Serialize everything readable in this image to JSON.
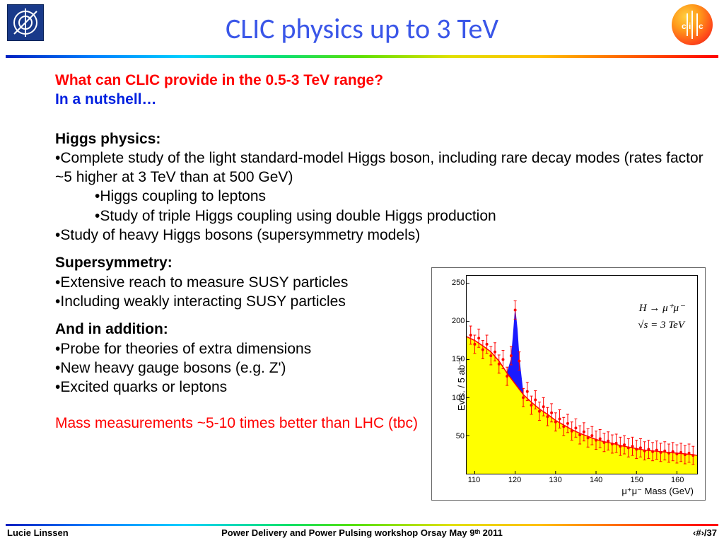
{
  "title": "CLIC physics up to 3 TeV",
  "question": "What can CLIC provide in the 0.5-3 TeV range?",
  "nutshell": "In a nutshell…",
  "higgs": {
    "heading": "Higgs physics:",
    "b1": "Complete study of the light standard-model Higgs boson, including rare decay modes (rates factor ~5 higher at 3 TeV than at 500 GeV)",
    "s1": "Higgs coupling to leptons",
    "s2": "Study of triple Higgs coupling using double Higgs production",
    "b2": "Study of heavy Higgs bosons (supersymmetry models)"
  },
  "susy": {
    "heading": "Supersymmetry:",
    "b1": "Extensive reach to measure SUSY particles",
    "b2": "Including weakly interacting SUSY particles"
  },
  "addl": {
    "heading": "And in addition:",
    "b1": "Probe for theories of extra dimensions",
    "b2": "New heavy gauge bosons (e.g. Z')",
    "b3": "Excited quarks or leptons"
  },
  "mass_note": "Mass measurements ~5-10 times better than LHC (tbc)",
  "chart": {
    "ylabel": "Evts. / 5 ab⁻¹",
    "xlabel": "μ⁺μ⁻ Mass (GeV)",
    "anno1": "H → μ⁺μ⁻",
    "anno2": "√s = 3 TeV",
    "xlim": [
      108,
      165
    ],
    "ylim": [
      0,
      260
    ],
    "xticks": [
      110,
      120,
      130,
      140,
      150,
      160
    ],
    "yticks": [
      50,
      100,
      150,
      200,
      250
    ],
    "bg_fill": "#ffff00",
    "line_color": "#ff0000",
    "peak_color": "#1a1aff",
    "background_curve": [
      [
        108,
        180
      ],
      [
        110,
        175
      ],
      [
        112,
        168
      ],
      [
        114,
        160
      ],
      [
        116,
        148
      ],
      [
        118,
        132
      ],
      [
        120,
        118
      ],
      [
        122,
        104
      ],
      [
        124,
        94
      ],
      [
        126,
        85
      ],
      [
        128,
        78
      ],
      [
        130,
        70
      ],
      [
        132,
        64
      ],
      [
        134,
        58
      ],
      [
        136,
        53
      ],
      [
        138,
        49
      ],
      [
        140,
        45
      ],
      [
        142,
        42
      ],
      [
        144,
        40
      ],
      [
        146,
        37
      ],
      [
        148,
        35
      ],
      [
        150,
        33
      ],
      [
        152,
        31
      ],
      [
        154,
        30
      ],
      [
        156,
        29
      ],
      [
        158,
        28
      ],
      [
        160,
        27
      ],
      [
        162,
        26
      ],
      [
        164,
        25
      ],
      [
        165,
        24
      ]
    ],
    "peak_curve": [
      [
        118,
        132
      ],
      [
        119,
        150
      ],
      [
        119.5,
        180
      ],
      [
        120,
        215
      ],
      [
        120.5,
        190
      ],
      [
        121,
        150
      ],
      [
        122,
        104
      ]
    ],
    "data_points": [
      [
        109,
        182
      ],
      [
        110,
        170
      ],
      [
        111,
        178
      ],
      [
        112,
        163
      ],
      [
        113,
        170
      ],
      [
        114,
        155
      ],
      [
        115,
        160
      ],
      [
        116,
        144
      ],
      [
        117,
        150
      ],
      [
        118,
        128
      ],
      [
        119,
        155
      ],
      [
        120,
        215
      ],
      [
        121,
        148
      ],
      [
        122,
        100
      ],
      [
        123,
        108
      ],
      [
        124,
        90
      ],
      [
        125,
        97
      ],
      [
        126,
        82
      ],
      [
        127,
        88
      ],
      [
        128,
        75
      ],
      [
        129,
        80
      ],
      [
        130,
        68
      ],
      [
        131,
        72
      ],
      [
        132,
        62
      ],
      [
        133,
        66
      ],
      [
        134,
        56
      ],
      [
        135,
        60
      ],
      [
        136,
        51
      ],
      [
        137,
        55
      ],
      [
        138,
        47
      ],
      [
        139,
        50
      ],
      [
        140,
        44
      ],
      [
        141,
        46
      ],
      [
        142,
        41
      ],
      [
        143,
        43
      ],
      [
        144,
        39
      ],
      [
        145,
        40
      ],
      [
        146,
        36
      ],
      [
        147,
        38
      ],
      [
        148,
        34
      ],
      [
        149,
        36
      ],
      [
        150,
        32
      ],
      [
        151,
        34
      ],
      [
        152,
        30
      ],
      [
        153,
        32
      ],
      [
        154,
        29
      ],
      [
        155,
        31
      ],
      [
        156,
        28
      ],
      [
        157,
        30
      ],
      [
        158,
        27
      ],
      [
        159,
        29
      ],
      [
        160,
        26
      ],
      [
        161,
        28
      ],
      [
        162,
        25
      ],
      [
        163,
        27
      ],
      [
        164,
        24
      ]
    ],
    "error_bar": 12
  },
  "footer": {
    "author": "Lucie Linssen",
    "event": "Power Delivery and Power Pulsing workshop Orsay May 9ᵗʰ 2011",
    "page": "‹#›/37"
  },
  "colors": {
    "title": "#3a56e8",
    "red": "#ff0000",
    "blue": "#0020e0",
    "yellow": "#ffff00",
    "peak": "#1a1aff"
  }
}
